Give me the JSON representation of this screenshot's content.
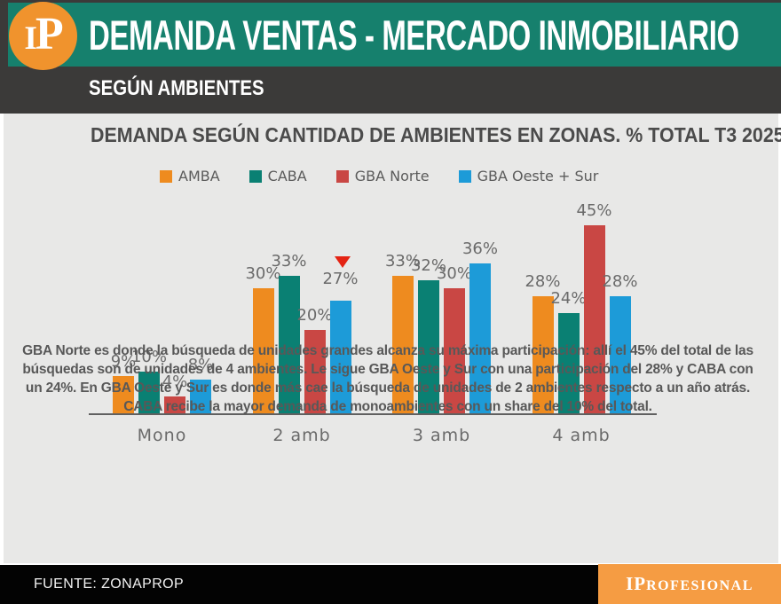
{
  "header": {
    "logo_letters": "IP",
    "title": "DEMANDA VENTAS - MERCADO INMOBILIARIO",
    "subtitle": "SEGÚN AMBIENTES",
    "colors": {
      "band_teal": "#16806D",
      "band_dark": "#3B3A39",
      "logo_orange": "#F0932D"
    }
  },
  "chart_data": {
    "type": "bar",
    "title": "DEMANDA SEGÚN CANTIDAD DE AMBIENTES EN ZONAS. % TOTAL T3 2025.",
    "categories": [
      "Mono",
      "2 amb",
      "3 amb",
      "4 amb"
    ],
    "series": [
      {
        "name": "AMBA",
        "color": "#EE8B1F",
        "values": [
          9,
          30,
          33,
          28
        ]
      },
      {
        "name": "CABA",
        "color": "#0A8073",
        "values": [
          10,
          33,
          32,
          24
        ]
      },
      {
        "name": "GBA Norte",
        "color": "#C94744",
        "values": [
          4,
          20,
          30,
          45
        ]
      },
      {
        "name": "GBA Oeste + Sur",
        "color": "#1D9BD8",
        "values": [
          8,
          27,
          36,
          28
        ]
      }
    ],
    "value_suffix": "%",
    "ylim": [
      0,
      48
    ],
    "grid": false,
    "legend_position": "top-left",
    "background": "#E8E8E7",
    "annotations": [
      {
        "type": "down-triangle",
        "color": "#E42313",
        "series": "GBA Oeste + Sur",
        "category": "2 amb"
      }
    ]
  },
  "note": "GBA Norte es donde la búsqueda de unidades grandes alcanza su máxima participación: allí el 45% del total de las búsquedas son de unidades de 4 ambientes. Le sigue GBA Oeste y Sur con una participación del 28% y CABA con un 24%. En GBA Oeste y Sur es donde más cae la búsqueda de unidades de 2 ambientes respecto a un año atrás. CABA recibe la mayor demanda de monoambientes con un share del 10% del total.",
  "footer": {
    "source": "FUENTE: ZONAPROP",
    "brand_big": "IP",
    "brand_rest": "ROFESIONAL"
  }
}
